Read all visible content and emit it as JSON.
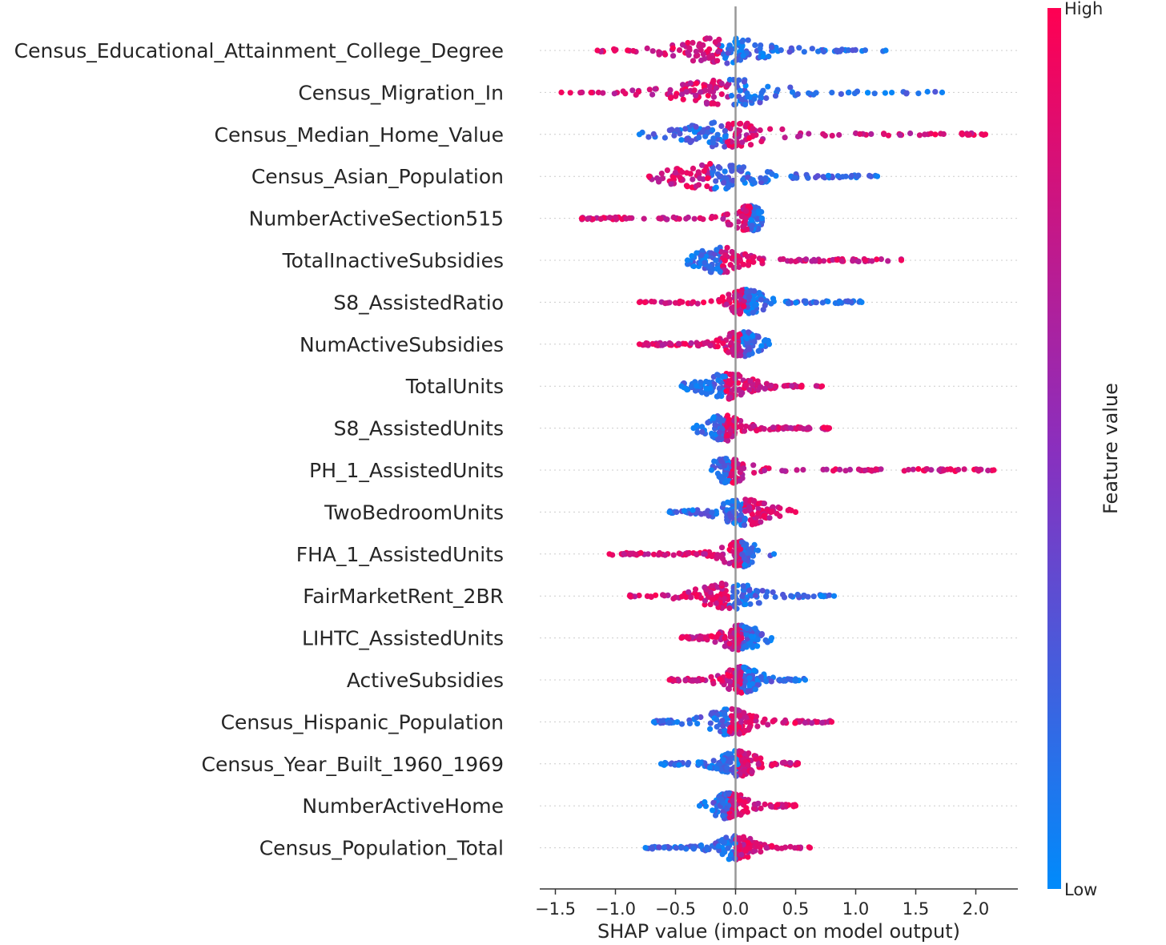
{
  "chart_data": {
    "type": "scatter",
    "subtype": "shap-beeswarm",
    "title": "",
    "xlabel": "SHAP value (impact on model output)",
    "ylabel": "",
    "xlim": [
      -1.63,
      2.35
    ],
    "x_ticks": [
      -1.5,
      -1.0,
      -0.5,
      0.0,
      0.5,
      1.0,
      1.5,
      2.0
    ],
    "x_tick_labels": [
      "−1.5",
      "−1.0",
      "−0.5",
      "0.0",
      "0.5",
      "1.0",
      "1.5",
      "2.0"
    ],
    "colorbar": {
      "title": "Feature value",
      "high_label": "High",
      "low_label": "Low",
      "high_color": "#ff0052",
      "mid_color": "#8a2fbe",
      "low_color": "#008bfb"
    },
    "features": [
      {
        "name": "Census_Educational_Attainment_College_Degree",
        "min": -1.15,
        "max": 1.25,
        "peak": -0.12,
        "spread": 0.35,
        "high_side": "neg"
      },
      {
        "name": "Census_Migration_In",
        "min": -1.45,
        "max": 1.72,
        "peak": -0.05,
        "spread": 0.4,
        "high_side": "neg"
      },
      {
        "name": "Census_Median_Home_Value",
        "min": -0.8,
        "max": 2.08,
        "peak": -0.08,
        "spread": 0.35,
        "high_side": "pos"
      },
      {
        "name": "Census_Asian_Population",
        "min": -0.72,
        "max": 1.18,
        "peak": -0.2,
        "spread": 0.35,
        "high_side": "neg"
      },
      {
        "name": "NumberActiveSection515",
        "min": -1.28,
        "max": 0.22,
        "peak": 0.12,
        "spread": 0.08,
        "high_side": "neg"
      },
      {
        "name": "TotalInactiveSubsidies",
        "min": -0.4,
        "max": 1.38,
        "peak": -0.12,
        "spread": 0.2,
        "high_side": "pos"
      },
      {
        "name": "S8_AssistedRatio",
        "min": -0.8,
        "max": 1.05,
        "peak": 0.08,
        "spread": 0.15,
        "high_side": "neg"
      },
      {
        "name": "NumActiveSubsidies",
        "min": -0.8,
        "max": 0.28,
        "peak": 0.05,
        "spread": 0.15,
        "high_side": "neg"
      },
      {
        "name": "TotalUnits",
        "min": -0.45,
        "max": 0.72,
        "peak": -0.08,
        "spread": 0.2,
        "high_side": "pos"
      },
      {
        "name": "S8_AssistedUnits",
        "min": -0.35,
        "max": 0.78,
        "peak": -0.1,
        "spread": 0.12,
        "high_side": "pos"
      },
      {
        "name": "PH_1_AssistedUnits",
        "min": -0.2,
        "max": 2.15,
        "peak": -0.05,
        "spread": 0.08,
        "high_side": "pos"
      },
      {
        "name": "TwoBedroomUnits",
        "min": -0.55,
        "max": 0.5,
        "peak": 0.08,
        "spread": 0.2,
        "high_side": "pos"
      },
      {
        "name": "FHA_1_AssistedUnits",
        "min": -1.05,
        "max": 0.32,
        "peak": 0.05,
        "spread": 0.08,
        "high_side": "neg"
      },
      {
        "name": "FairMarketRent_2BR",
        "min": -0.88,
        "max": 0.82,
        "peak": -0.05,
        "spread": 0.25,
        "high_side": "neg"
      },
      {
        "name": "LIHTC_AssistedUnits",
        "min": -0.45,
        "max": 0.3,
        "peak": 0.05,
        "spread": 0.12,
        "high_side": "neg"
      },
      {
        "name": "ActiveSubsidies",
        "min": -0.55,
        "max": 0.58,
        "peak": 0.05,
        "spread": 0.12,
        "high_side": "neg"
      },
      {
        "name": "Census_Hispanic_Population",
        "min": -0.68,
        "max": 0.8,
        "peak": -0.05,
        "spread": 0.2,
        "high_side": "pos"
      },
      {
        "name": "Census_Year_Built_1960_1969",
        "min": -0.62,
        "max": 0.52,
        "peak": 0.02,
        "spread": 0.15,
        "high_side": "pos"
      },
      {
        "name": "NumberActiveHome",
        "min": -0.3,
        "max": 0.5,
        "peak": -0.05,
        "spread": 0.08,
        "high_side": "pos"
      },
      {
        "name": "Census_Population_Total",
        "min": -0.75,
        "max": 0.62,
        "peak": 0.0,
        "spread": 0.15,
        "high_side": "pos"
      }
    ]
  }
}
